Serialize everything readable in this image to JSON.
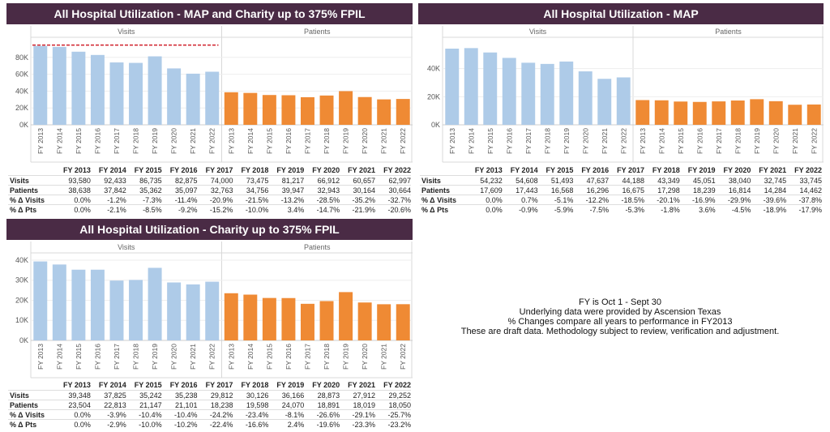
{
  "chart_data": [
    {
      "type": "bar",
      "title": "All Hospital Utilization - MAP and Charity up to 375% FPIL",
      "categories": [
        "FY 2013",
        "FY 2014",
        "FY 2015",
        "FY 2016",
        "FY 2017",
        "FY 2018",
        "FY 2019",
        "FY 2020",
        "FY 2021",
        "FY 2022"
      ],
      "panes": [
        "Visits",
        "Patients"
      ],
      "series": [
        {
          "values": [
            93580,
            92433,
            86735,
            82875,
            74000,
            73475,
            81217,
            66912,
            60657,
            62997
          ]
        },
        {
          "values": [
            38638,
            37842,
            35362,
            35097,
            32763,
            34756,
            39947,
            32943,
            30164,
            30664
          ]
        }
      ],
      "ylim": [
        0,
        100000
      ],
      "yticks": [
        "0K",
        "20K",
        "40K",
        "60K",
        "80K"
      ],
      "ytick_values": [
        0,
        20000,
        40000,
        60000,
        80000
      ],
      "reference_line": 93580,
      "table_rows": [
        {
          "label": "Visits",
          "values": [
            "93,580",
            "92,433",
            "86,735",
            "82,875",
            "74,000",
            "73,475",
            "81,217",
            "66,912",
            "60,657",
            "62,997"
          ]
        },
        {
          "label": "Patients",
          "values": [
            "38,638",
            "37,842",
            "35,362",
            "35,097",
            "32,763",
            "34,756",
            "39,947",
            "32,943",
            "30,164",
            "30,664"
          ]
        },
        {
          "label": "% Δ Visits",
          "values": [
            "0.0%",
            "-1.2%",
            "-7.3%",
            "-11.4%",
            "-20.9%",
            "-21.5%",
            "-13.2%",
            "-28.5%",
            "-35.2%",
            "-32.7%"
          ]
        },
        {
          "label": "% Δ Pts",
          "values": [
            "0.0%",
            "-2.1%",
            "-8.5%",
            "-9.2%",
            "-15.2%",
            "-10.0%",
            "3.4%",
            "-14.7%",
            "-21.9%",
            "-20.6%"
          ]
        }
      ]
    },
    {
      "type": "bar",
      "title": "All Hospital Utilization - MAP",
      "categories": [
        "FY 2013",
        "FY 2014",
        "FY 2015",
        "FY 2016",
        "FY 2017",
        "FY 2018",
        "FY 2019",
        "FY 2020",
        "FY 2021",
        "FY 2022"
      ],
      "panes": [
        "Visits",
        "Patients"
      ],
      "series": [
        {
          "values": [
            54232,
            54608,
            51493,
            47637,
            44188,
            43349,
            45051,
            38040,
            32745,
            33745
          ]
        },
        {
          "values": [
            17609,
            17443,
            16568,
            16296,
            16675,
            17298,
            18239,
            16814,
            14284,
            14462
          ]
        }
      ],
      "ylim": [
        0,
        60000
      ],
      "yticks": [
        "0K",
        "20K",
        "40K"
      ],
      "ytick_values": [
        0,
        20000,
        40000
      ],
      "table_rows": [
        {
          "label": "Visits",
          "values": [
            "54,232",
            "54,608",
            "51,493",
            "47,637",
            "44,188",
            "43,349",
            "45,051",
            "38,040",
            "32,745",
            "33,745"
          ]
        },
        {
          "label": "Patients",
          "values": [
            "17,609",
            "17,443",
            "16,568",
            "16,296",
            "16,675",
            "17,298",
            "18,239",
            "16,814",
            "14,284",
            "14,462"
          ]
        },
        {
          "label": "% Δ Visits",
          "values": [
            "0.0%",
            "0.7%",
            "-5.1%",
            "-12.2%",
            "-18.5%",
            "-20.1%",
            "-16.9%",
            "-29.9%",
            "-39.6%",
            "-37.8%"
          ]
        },
        {
          "label": "% Δ Pts",
          "values": [
            "0.0%",
            "-0.9%",
            "-5.9%",
            "-7.5%",
            "-5.3%",
            "-1.8%",
            "3.6%",
            "-4.5%",
            "-18.9%",
            "-17.9%"
          ]
        }
      ]
    },
    {
      "type": "bar",
      "title": "All Hospital Utilization - Charity up to 375% FPIL",
      "categories": [
        "FY 2013",
        "FY 2014",
        "FY 2015",
        "FY 2016",
        "FY 2017",
        "FY 2018",
        "FY 2019",
        "FY 2020",
        "FY 2021",
        "FY 2022"
      ],
      "panes": [
        "Visits",
        "Patients"
      ],
      "series": [
        {
          "values": [
            39348,
            37825,
            35242,
            35238,
            29812,
            30126,
            36166,
            28873,
            27912,
            29252
          ]
        },
        {
          "values": [
            23504,
            22813,
            21147,
            21101,
            18238,
            19598,
            24070,
            18891,
            18019,
            18050
          ]
        }
      ],
      "ylim": [
        0,
        42000
      ],
      "yticks": [
        "0K",
        "10K",
        "20K",
        "30K",
        "40K"
      ],
      "ytick_values": [
        0,
        10000,
        20000,
        30000,
        40000
      ],
      "table_rows": [
        {
          "label": "Visits",
          "values": [
            "39,348",
            "37,825",
            "35,242",
            "35,238",
            "29,812",
            "30,126",
            "36,166",
            "28,873",
            "27,912",
            "29,252"
          ]
        },
        {
          "label": "Patients",
          "values": [
            "23,504",
            "22,813",
            "21,147",
            "21,101",
            "18,238",
            "19,598",
            "24,070",
            "18,891",
            "18,019",
            "18,050"
          ]
        },
        {
          "label": "% Δ Visits",
          "values": [
            "0.0%",
            "-3.9%",
            "-10.4%",
            "-10.4%",
            "-24.2%",
            "-23.4%",
            "-8.1%",
            "-26.6%",
            "-29.1%",
            "-25.7%"
          ]
        },
        {
          "label": "% Δ Pts",
          "values": [
            "0.0%",
            "-2.9%",
            "-10.0%",
            "-10.2%",
            "-22.4%",
            "-16.6%",
            "2.4%",
            "-19.6%",
            "-23.3%",
            "-23.2%"
          ]
        }
      ]
    }
  ],
  "colors": {
    "visits": "#aecbe8",
    "patients": "#ef8a34",
    "title_bg": "#4a2b45",
    "refline": "#d0202a"
  },
  "notes": [
    "FY is Oct 1 - Sept 30",
    "Underlying data were provided by Ascension Texas",
    "% Changes compare all years to performance in FY2013",
    "These are draft data. Methodology subject to review, verification and adjustment."
  ]
}
